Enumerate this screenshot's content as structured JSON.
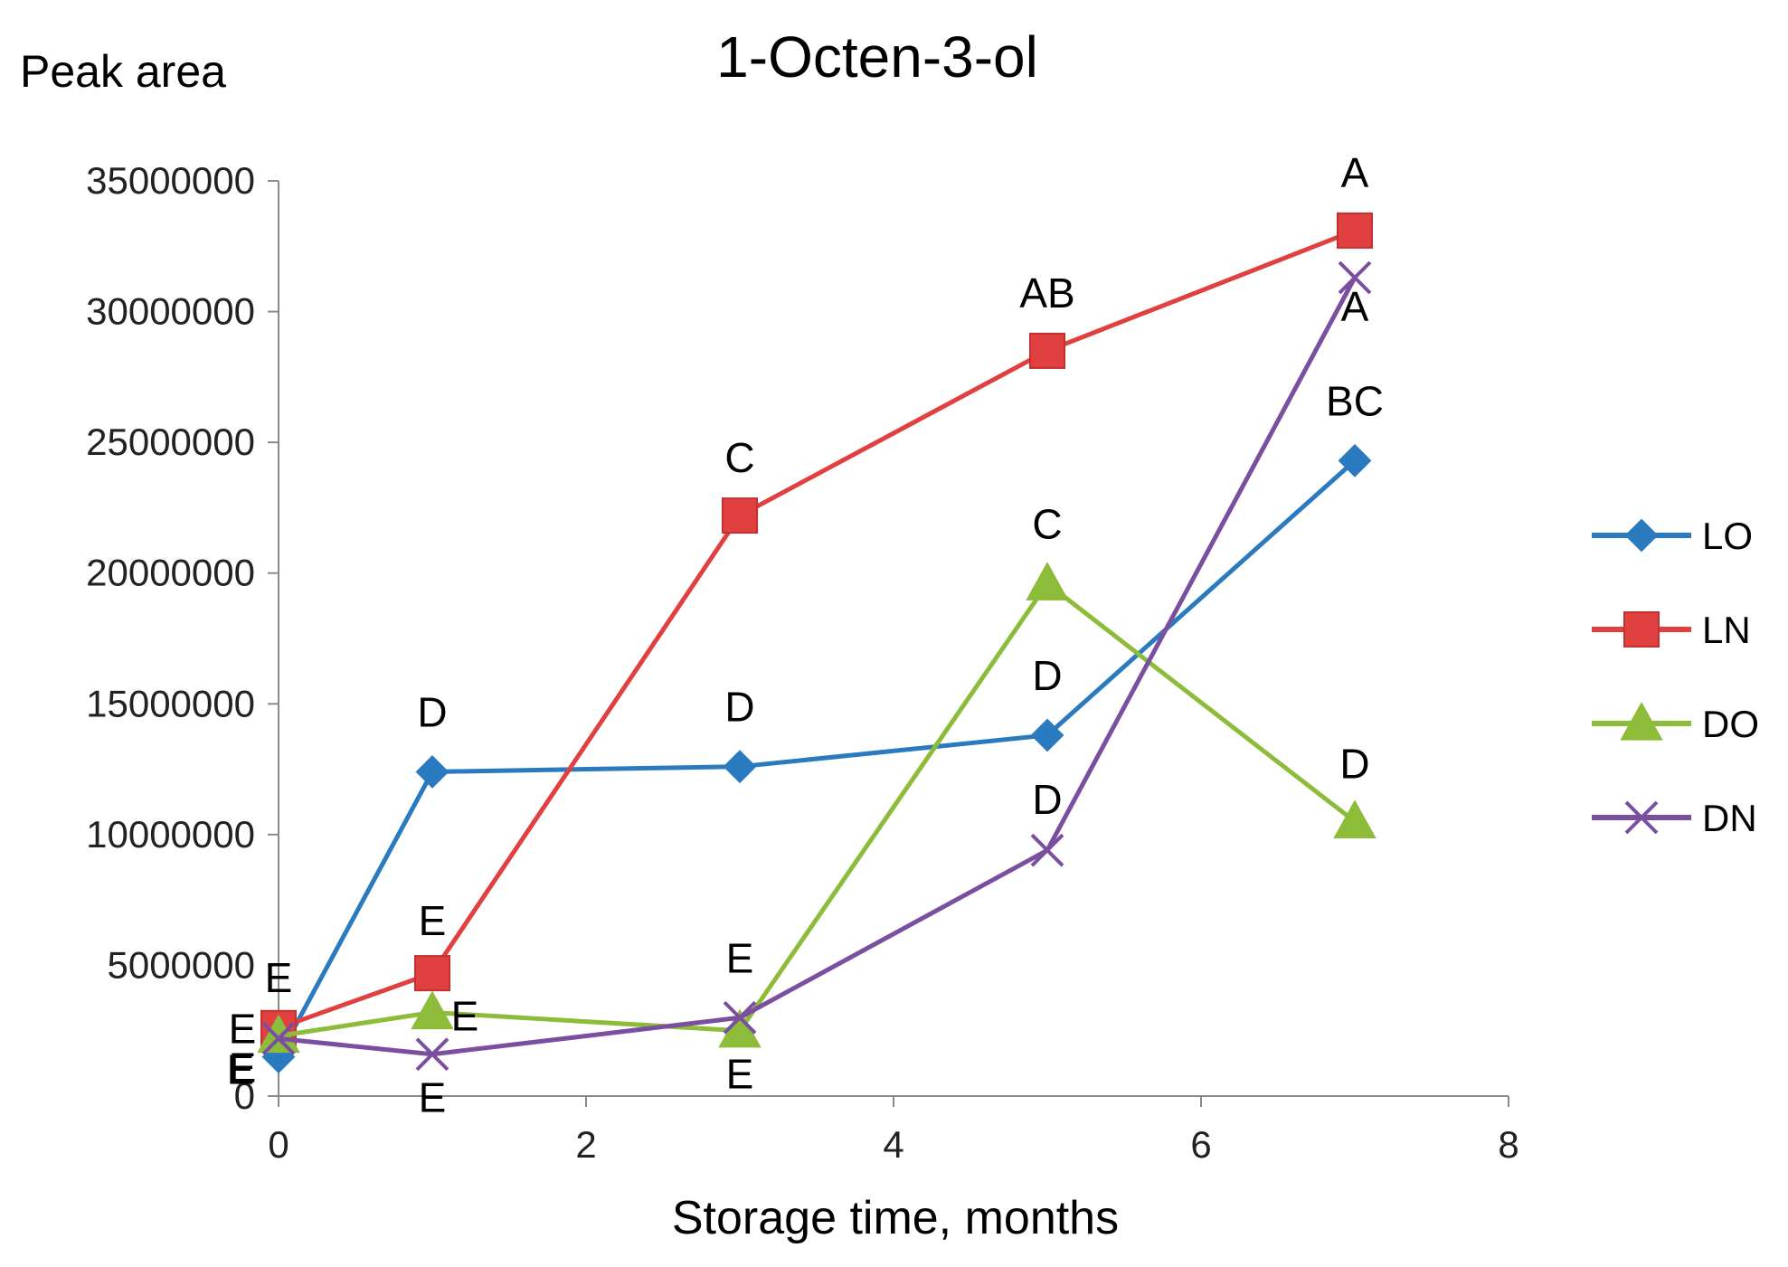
{
  "chart_data": {
    "type": "line",
    "title": "1-Octen-3-ol",
    "ylabel": "Peak area",
    "xlabel": "Storage time, months",
    "xlim": [
      0,
      8
    ],
    "ylim": [
      0,
      35000000
    ],
    "x_ticks": [
      "0",
      "2",
      "4",
      "6",
      "8"
    ],
    "y_ticks": [
      "0",
      "5000000",
      "10000000",
      "15000000",
      "20000000",
      "25000000",
      "30000000",
      "35000000"
    ],
    "grid": false,
    "legend_position": "right",
    "series": [
      {
        "name": "LO",
        "color": "#2a7abf",
        "marker": "diamond",
        "x": [
          0,
          1,
          3,
          5,
          7
        ],
        "values": [
          1500000,
          12400000,
          12600000,
          13800000,
          24300000
        ],
        "labels": [
          "E",
          "D",
          "D",
          "D",
          "BC"
        ]
      },
      {
        "name": "LN",
        "color": "#e04040",
        "marker": "square",
        "x": [
          0,
          1,
          3,
          5,
          7
        ],
        "values": [
          2600000,
          4700000,
          22200000,
          28500000,
          33100000
        ],
        "labels": [
          "E",
          "E",
          "C",
          "AB",
          "A"
        ]
      },
      {
        "name": "DO",
        "color": "#8dbb3a",
        "marker": "triangle",
        "x": [
          0,
          1,
          3,
          5,
          7
        ],
        "values": [
          2300000,
          3200000,
          2500000,
          19600000,
          10500000
        ],
        "labels": [
          "E",
          "E",
          "E",
          "C",
          "D"
        ]
      },
      {
        "name": "DN",
        "color": "#7b4fa0",
        "marker": "x",
        "x": [
          0,
          1,
          3,
          5,
          7
        ],
        "values": [
          2200000,
          1600000,
          3000000,
          9400000,
          31300000
        ],
        "labels": [
          "E",
          "E",
          "E",
          "D",
          "A"
        ]
      }
    ]
  }
}
